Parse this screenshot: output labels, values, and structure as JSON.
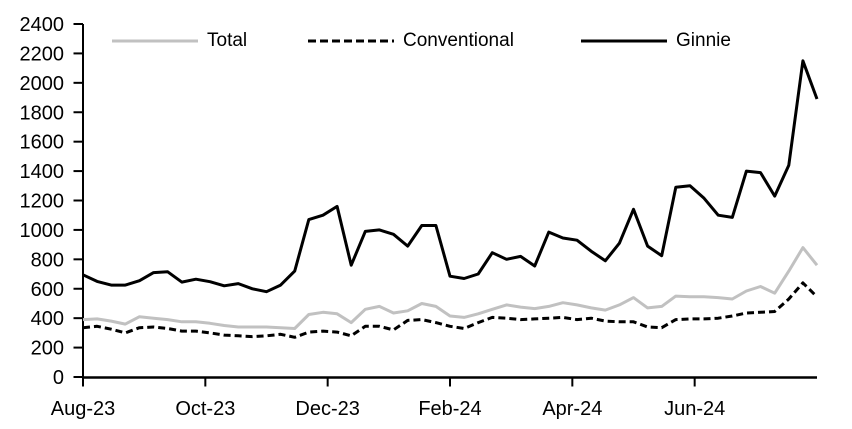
{
  "chart_data": {
    "type": "line",
    "title": "",
    "xlabel": "",
    "ylabel": "",
    "ylim": [
      0,
      2400
    ],
    "y_tick_step": 200,
    "y_ticks": [
      0,
      200,
      400,
      600,
      800,
      1000,
      1200,
      1400,
      1600,
      1800,
      2000,
      2200,
      2400
    ],
    "x_tick_labels": [
      "Aug-23",
      "Oct-23",
      "Dec-23",
      "Feb-24",
      "Apr-24",
      "Jun-24"
    ],
    "x_frequency": "weekly",
    "grid": false,
    "legend_position": "top",
    "series": [
      {
        "name": "Total",
        "color": "#c1c1c1",
        "line_style": "solid",
        "values": [
          390,
          395,
          380,
          360,
          410,
          400,
          390,
          375,
          375,
          365,
          350,
          340,
          340,
          340,
          335,
          330,
          425,
          440,
          430,
          370,
          460,
          480,
          435,
          450,
          500,
          480,
          415,
          405,
          430,
          460,
          490,
          475,
          465,
          480,
          505,
          490,
          470,
          455,
          490,
          540,
          470,
          480,
          550,
          545,
          545,
          540,
          530,
          585,
          615,
          570,
          720,
          880,
          760
        ]
      },
      {
        "name": "Conventional",
        "color": "#000000",
        "line_style": "dashed",
        "values": [
          335,
          345,
          325,
          300,
          335,
          340,
          330,
          312,
          312,
          300,
          285,
          280,
          275,
          280,
          290,
          270,
          305,
          312,
          305,
          280,
          345,
          345,
          320,
          385,
          390,
          370,
          345,
          330,
          370,
          405,
          400,
          390,
          395,
          400,
          405,
          390,
          400,
          380,
          375,
          375,
          340,
          335,
          390,
          395,
          395,
          400,
          415,
          435,
          440,
          445,
          530,
          640,
          545
        ]
      },
      {
        "name": "Ginnie",
        "color": "#000000",
        "line_style": "solid",
        "values": [
          695,
          650,
          625,
          625,
          655,
          710,
          715,
          645,
          665,
          648,
          620,
          635,
          600,
          580,
          625,
          720,
          1070,
          1100,
          1160,
          760,
          990,
          1000,
          970,
          890,
          1030,
          1030,
          685,
          670,
          700,
          845,
          800,
          820,
          755,
          985,
          945,
          930,
          855,
          790,
          910,
          1140,
          890,
          825,
          1290,
          1300,
          1215,
          1100,
          1085,
          1400,
          1390,
          1230,
          1440,
          2150,
          1890
        ]
      }
    ]
  }
}
